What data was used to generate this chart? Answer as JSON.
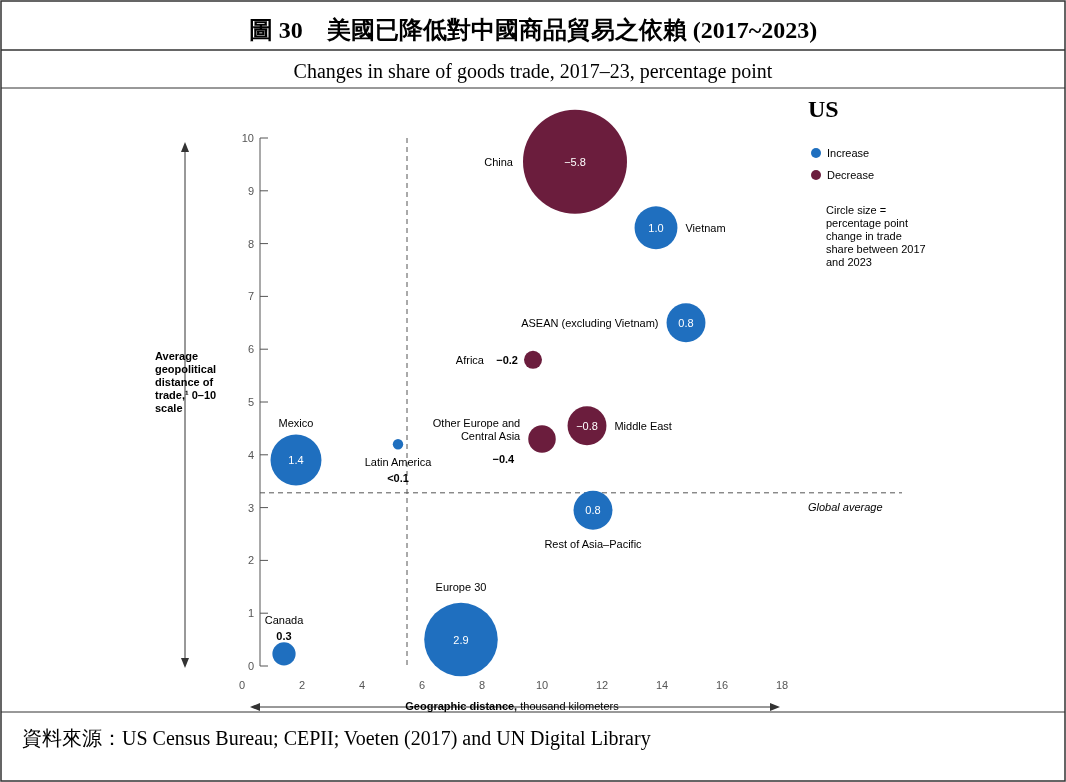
{
  "chart_data": {
    "type": "bubble",
    "title": "圖 30　美國已降低對中國商品貿易之依賴 (2017~2023)",
    "subtitle": "Changes in share of goods trade, 2017–23, percentage point",
    "xlabel": "Geographic distance, thousand kilometers",
    "ylabel": "Average geopolitical distance of trade,¹ 0–10 scale",
    "legend_title": "US",
    "legend": "right",
    "xlim": [
      0,
      18
    ],
    "xticks": [
      0,
      2,
      4,
      6,
      8,
      10,
      12,
      14,
      16,
      18
    ],
    "ylim": [
      0,
      10
    ],
    "yticks": [
      0,
      1,
      2,
      3,
      4,
      5,
      6,
      7,
      8,
      9,
      10
    ],
    "grid": false,
    "series": [
      {
        "name": "Increase",
        "color": "#1f6fbf",
        "x": [
          13.8,
          14.8,
          1.8,
          5.2,
          11.7,
          7.3,
          1.4
        ],
        "values": [
          8.3,
          6.5,
          3.9,
          4.2,
          2.95,
          0.5,
          0.23
        ],
        "sizes": [
          0.17,
          0.14,
          0.24,
          0.01,
          0.14,
          0.5,
          0.05
        ]
      },
      {
        "name": "Decrease",
        "color": "#6b1d3d",
        "x": [
          11.1,
          9.7,
          11.5,
          10.0
        ],
        "values": [
          9.55,
          5.8,
          4.55,
          4.3
        ],
        "sizes": [
          1,
          0.03,
          0.14,
          0.07
        ]
      }
    ],
    "ref_lines": [
      {
        "axis": "x",
        "value": 5.5,
        "line_style": "dashed"
      },
      {
        "axis": "y",
        "value": 3.28,
        "label": "Global average",
        "line_style": "dashed"
      }
    ],
    "annotations": [
      {
        "text": "1.0",
        "x": 13.8,
        "y": 8.3
      },
      {
        "text": "0.8",
        "x": 14.8,
        "y": 6.5
      },
      {
        "text": "1.4",
        "x": 1.8,
        "y": 3.9
      },
      {
        "text": "0.8",
        "x": 11.7,
        "y": 2.95
      },
      {
        "text": "2.9",
        "x": 7.3,
        "y": 0.5
      },
      {
        "text": "−5.8",
        "x": 11.1,
        "y": 9.55
      },
      {
        "text": "−0.8",
        "x": 11.5,
        "y": 4.55
      },
      "Vietnam",
      "ASEAN (excluding Vietnam)",
      "Mexico",
      "Latin America",
      "<0.1",
      "Rest of Asia–Pacific",
      "Europe 30",
      "Canada",
      "0.3",
      "China",
      "Africa",
      "−0.2",
      "Middle East",
      "Other Europe and Central Asia",
      "−0.4",
      "Circle size = percentage point change in trade share between 2017 and 2023",
      "資料來源：US Census Bureau; CEPII; Voeten (2017) and UN Digital Library"
    ]
  }
}
